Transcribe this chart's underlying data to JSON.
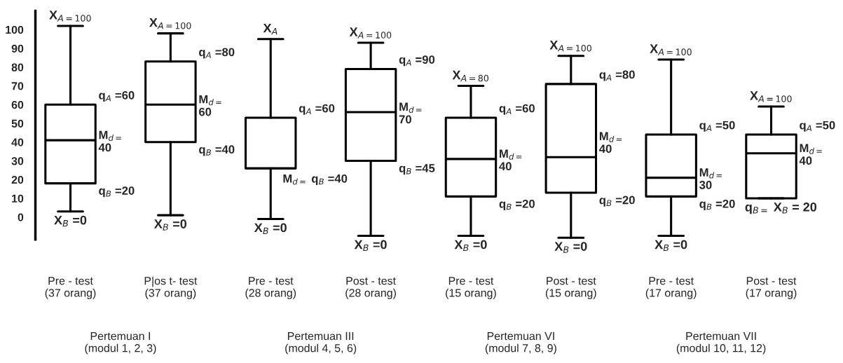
{
  "chart_data": {
    "type": "box",
    "categories": [
      "Pre - test\n(37 orang)",
      "P|os t- test\n(37 orang)",
      "Pre - test\n(28 orang)",
      "Post - test\n(28 orang)",
      "Pre - test\n(15 orang)",
      "Post - test\n(15 orang)",
      "Pre - test\n(17 orang)",
      "Post - test\n(17 orang)"
    ],
    "boxes": [
      {
        "low": 3,
        "q1": 18,
        "median": 41,
        "q3": 60,
        "high": 102
      },
      {
        "low": 1,
        "q1": 40,
        "median": 60,
        "q3": 83,
        "high": 98
      },
      {
        "low": -1,
        "q1": 26,
        "median": 26,
        "q3": 53,
        "high": 95
      },
      {
        "low": -10,
        "q1": 30,
        "median": 56,
        "q3": 79,
        "high": 93
      },
      {
        "low": -10,
        "q1": 11,
        "median": 31,
        "q3": 53,
        "high": 70
      },
      {
        "low": -11,
        "q1": 13,
        "median": 32,
        "q3": 71,
        "high": 86
      },
      {
        "low": -10,
        "q1": 11,
        "median": 21,
        "q3": 44,
        "high": 84
      },
      {
        "low": 10,
        "q1": 10,
        "median": 34,
        "q3": 44,
        "high": 59
      }
    ],
    "ylim": [
      -12,
      110
    ],
    "yticks": [
      0,
      10,
      20,
      30,
      40,
      50,
      60,
      70,
      80,
      90,
      100
    ],
    "grid": false,
    "annotations": [
      {
        "text": "X$_{A=100}$",
        "x": "Pre - test\n(37 orang)",
        "y": 102
      },
      {
        "text": "q$_{A}$ =60",
        "x": "Pre - test\n(37 orang)",
        "y": 60
      },
      {
        "text": "M$_{d=}$\n40",
        "x": "Pre - test\n(37 orang)",
        "y": 41
      },
      {
        "text": "q$_{B}$ =20",
        "x": "Pre - test\n(37 orang)",
        "y": 18
      },
      {
        "text": "X$_{B}$ =0",
        "x": "Pre - test\n(37 orang)",
        "y": 3
      },
      {
        "text": "X$_{A=100}$",
        "x": "P|os t- test\n(37 orang)",
        "y": 98
      },
      {
        "text": "q$_{A}$ =80",
        "x": "P|os t- test\n(37 orang)",
        "y": 83
      },
      {
        "text": "M$_{d=}$\n60",
        "x": "P|os t- test\n(37 orang)",
        "y": 60
      },
      {
        "text": "q$_{B}$ =40",
        "x": "P|os t- test\n(37 orang)",
        "y": 40
      },
      {
        "text": "X$_{B}$ =0",
        "x": "P|os t- test\n(37 orang)",
        "y": 1
      },
      {
        "text": "X$_{A}$",
        "x": "Pre - test\n(28 orang)",
        "y": 95
      },
      {
        "text": "q$_{A}$ =60",
        "x": "Pre - test\n(28 orang)",
        "y": 53
      },
      {
        "text": "M$_{d=}$ q$_{B}$ =40",
        "x": "Pre - test\n(28 orang)",
        "y": 26
      },
      {
        "text": "X$_{B}$ =0",
        "x": "Pre - test\n(28 orang)",
        "y": -1
      },
      {
        "text": "X$_{A=100}$",
        "x": "Post - test\n(28 orang)",
        "y": 93
      },
      {
        "text": "q$_{A}$ =90",
        "x": "Post - test\n(28 orang)",
        "y": 79
      },
      {
        "text": "M$_{d=}$\n70",
        "x": "Post - test\n(28 orang)",
        "y": 56
      },
      {
        "text": "q$_{B}$ =45",
        "x": "Post - test\n(28 orang)",
        "y": 30
      },
      {
        "text": "X$_{B}$ =0",
        "x": "Post - test\n(28 orang)",
        "y": -10
      },
      {
        "text": "X$_{A=80}$",
        "x": "Pre - test\n(15 orang)",
        "y": 70
      },
      {
        "text": "q$_{A}$ =60",
        "x": "Pre - test\n(15 orang)",
        "y": 53
      },
      {
        "text": "M$_{d=}$\n40",
        "x": "Pre - test\n(15 orang)",
        "y": 31
      },
      {
        "text": "q$_{B}$ =20",
        "x": "Pre - test\n(15 orang)",
        "y": 11
      },
      {
        "text": "X$_{B}$ =0",
        "x": "Pre - test\n(15 orang)",
        "y": -10
      },
      {
        "text": "X$_{A=100}$",
        "x": "Post - test\n(15 orang)",
        "y": 86
      },
      {
        "text": "q$_{A}$ =80",
        "x": "Post - test\n(15 orang)",
        "y": 71
      },
      {
        "text": "M$_{d=}$\n40",
        "x": "Post - test\n(15 orang)",
        "y": 32
      },
      {
        "text": "q$_{B}$ =20",
        "x": "Post - test\n(15 orang)",
        "y": 13
      },
      {
        "text": "X$_{B}$ =0",
        "x": "Post - test\n(15 orang)",
        "y": -11
      },
      {
        "text": "X$_{A=100}$",
        "x": "Pre - test\n(17 orang)",
        "y": 84
      },
      {
        "text": "q$_{A}$ =50",
        "x": "Pre - test\n(17 orang)",
        "y": 44
      },
      {
        "text": "M$_{d=}$\n30",
        "x": "Pre - test\n(17 orang)",
        "y": 21
      },
      {
        "text": "q$_{B}$ =20",
        "x": "Pre - test\n(17 orang)",
        "y": 11
      },
      {
        "text": "X$_{B}$ =0",
        "x": "Pre - test\n(17 orang)",
        "y": -10
      },
      {
        "text": "X$_{A=100}$",
        "x": "Post - test\n(17 orang)",
        "y": 59
      },
      {
        "text": "q$_{A}$ =50",
        "x": "Post - test\n(17 orang)",
        "y": 44
      },
      {
        "text": "M$_{d=}$\n40",
        "x": "Post - test\n(17 orang)",
        "y": 34
      },
      {
        "text": "q$_{B=}$ X$_{B}$ = 20",
        "x": "Post - test\n(17 orang)",
        "y": 10
      },
      "Pertemuan I\n(modul 1, 2, 3)",
      "Pertemuan III\n(modul 4, 5, 6)",
      "Pertemuan VI\n(modul 7, 8, 9)",
      "Pertemuan VII\n(modul 10, 11, 12)"
    ]
  }
}
